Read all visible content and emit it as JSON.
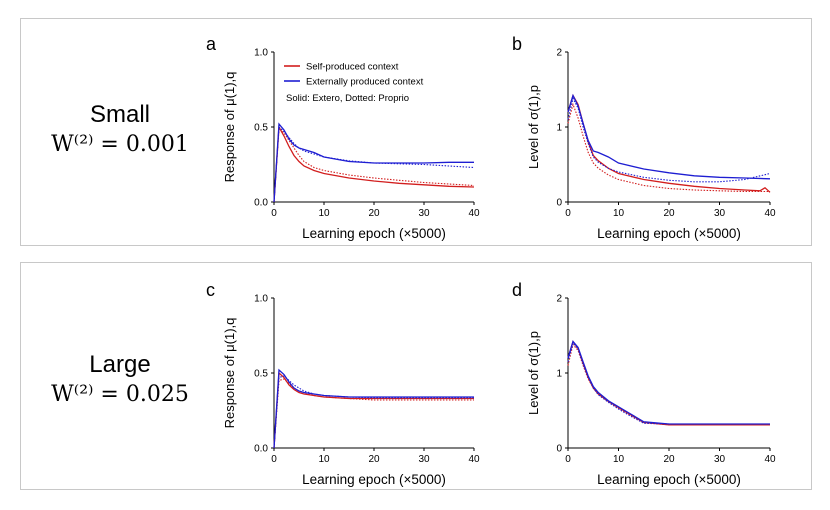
{
  "rows": [
    {
      "label": "Small",
      "formula": "W⁽²⁾ = 0.001"
    },
    {
      "label": "Large",
      "formula": "W⁽²⁾ = 0.025"
    }
  ],
  "legend": {
    "items": [
      {
        "name": "Self-produced context",
        "color": "#d21e1e"
      },
      {
        "name": "Externally produced context",
        "color": "#1e1ed2"
      }
    ],
    "note": "Solid: Extero, Dotted: Proprio"
  },
  "chart_data": [
    {
      "type": "line",
      "panel": "a",
      "xlabel": "Learning epoch (×5000)",
      "ylabel": "Response of μ(1),q",
      "xlim": [
        0,
        40
      ],
      "ylim": [
        0,
        1
      ],
      "xticks": [
        "0",
        "10",
        "20",
        "30",
        "40"
      ],
      "yticks": [
        "0.0",
        "0.5",
        "1.0"
      ],
      "series": [
        {
          "name": "Self-produced context (Extero)",
          "color": "#d21e1e",
          "style": "solid",
          "x": [
            0,
            1,
            2,
            3,
            4,
            5,
            6,
            8,
            10,
            15,
            20,
            25,
            30,
            35,
            40
          ],
          "y": [
            0.0,
            0.5,
            0.44,
            0.37,
            0.31,
            0.27,
            0.24,
            0.21,
            0.19,
            0.16,
            0.14,
            0.125,
            0.115,
            0.105,
            0.1
          ]
        },
        {
          "name": "Self-produced context (Proprio)",
          "color": "#d21e1e",
          "style": "dotted",
          "x": [
            0,
            1,
            2,
            3,
            4,
            5,
            6,
            8,
            10,
            15,
            20,
            25,
            30,
            35,
            40
          ],
          "y": [
            0.0,
            0.49,
            0.46,
            0.41,
            0.36,
            0.31,
            0.27,
            0.23,
            0.21,
            0.18,
            0.16,
            0.145,
            0.13,
            0.12,
            0.11
          ]
        },
        {
          "name": "Externally produced context (Extero)",
          "color": "#1e1ed2",
          "style": "solid",
          "x": [
            0,
            1,
            2,
            3,
            4,
            5,
            6,
            8,
            10,
            15,
            20,
            25,
            30,
            35,
            40
          ],
          "y": [
            0.0,
            0.52,
            0.48,
            0.42,
            0.38,
            0.36,
            0.35,
            0.33,
            0.3,
            0.27,
            0.26,
            0.26,
            0.26,
            0.265,
            0.265
          ]
        },
        {
          "name": "Externally produced context (Proprio)",
          "color": "#1e1ed2",
          "style": "dotted",
          "x": [
            0,
            1,
            2,
            3,
            4,
            5,
            6,
            8,
            10,
            15,
            20,
            25,
            30,
            35,
            40
          ],
          "y": [
            0.0,
            0.5,
            0.47,
            0.43,
            0.39,
            0.36,
            0.34,
            0.32,
            0.3,
            0.275,
            0.26,
            0.255,
            0.25,
            0.24,
            0.23
          ]
        }
      ]
    },
    {
      "type": "line",
      "panel": "b",
      "xlabel": "Learning epoch (×5000)",
      "ylabel": "Level of σ(1),p",
      "xlim": [
        0,
        40
      ],
      "ylim": [
        0,
        2
      ],
      "xticks": [
        "0",
        "10",
        "20",
        "30",
        "40"
      ],
      "yticks": [
        "0",
        "1",
        "2"
      ],
      "series": [
        {
          "name": "Self-produced context (Extero)",
          "color": "#d21e1e",
          "style": "solid",
          "x": [
            0,
            1,
            2,
            3,
            4,
            5,
            6,
            8,
            10,
            15,
            20,
            25,
            30,
            35,
            38,
            39,
            40
          ],
          "y": [
            1.2,
            1.42,
            1.3,
            1.05,
            0.8,
            0.62,
            0.55,
            0.45,
            0.38,
            0.3,
            0.25,
            0.21,
            0.18,
            0.16,
            0.15,
            0.19,
            0.13
          ]
        },
        {
          "name": "Self-produced context (Proprio)",
          "color": "#d21e1e",
          "style": "dotted",
          "x": [
            0,
            1,
            2,
            3,
            4,
            5,
            6,
            8,
            10,
            15,
            20,
            25,
            30,
            35,
            40
          ],
          "y": [
            1.05,
            1.3,
            1.12,
            0.88,
            0.66,
            0.52,
            0.45,
            0.36,
            0.3,
            0.22,
            0.18,
            0.16,
            0.15,
            0.14,
            0.14
          ]
        },
        {
          "name": "Externally produced context (Extero)",
          "color": "#1e1ed2",
          "style": "solid",
          "x": [
            0,
            1,
            2,
            3,
            4,
            5,
            6,
            8,
            10,
            15,
            20,
            25,
            30,
            35,
            40
          ],
          "y": [
            1.2,
            1.42,
            1.28,
            1.05,
            0.82,
            0.68,
            0.66,
            0.6,
            0.52,
            0.44,
            0.39,
            0.35,
            0.33,
            0.32,
            0.31
          ]
        },
        {
          "name": "Externally produced context (Proprio)",
          "color": "#1e1ed2",
          "style": "dotted",
          "x": [
            0,
            1,
            2,
            3,
            4,
            5,
            6,
            8,
            10,
            15,
            20,
            25,
            30,
            35,
            40
          ],
          "y": [
            1.1,
            1.38,
            1.25,
            1.0,
            0.78,
            0.6,
            0.53,
            0.45,
            0.4,
            0.33,
            0.29,
            0.27,
            0.27,
            0.3,
            0.38
          ]
        }
      ]
    },
    {
      "type": "line",
      "panel": "c",
      "xlabel": "Learning epoch (×5000)",
      "ylabel": "Response of μ(1),q",
      "xlim": [
        0,
        40
      ],
      "ylim": [
        0,
        1
      ],
      "xticks": [
        "0",
        "10",
        "20",
        "30",
        "40"
      ],
      "yticks": [
        "0.0",
        "0.5",
        "1.0"
      ],
      "series": [
        {
          "name": "Self-produced context (Extero)",
          "color": "#d21e1e",
          "style": "solid",
          "x": [
            0,
            1,
            2,
            3,
            4,
            5,
            6,
            8,
            10,
            15,
            20,
            25,
            30,
            35,
            40
          ],
          "y": [
            0.0,
            0.5,
            0.47,
            0.42,
            0.39,
            0.37,
            0.36,
            0.35,
            0.34,
            0.33,
            0.33,
            0.33,
            0.33,
            0.33,
            0.33
          ]
        },
        {
          "name": "Self-produced context (Proprio)",
          "color": "#d21e1e",
          "style": "dotted",
          "x": [
            0,
            1,
            2,
            3,
            4,
            5,
            6,
            8,
            10,
            15,
            20,
            25,
            30,
            35,
            40
          ],
          "y": [
            0.0,
            0.45,
            0.46,
            0.43,
            0.4,
            0.38,
            0.37,
            0.35,
            0.34,
            0.33,
            0.32,
            0.32,
            0.32,
            0.32,
            0.32
          ]
        },
        {
          "name": "Externally produced context (Extero)",
          "color": "#1e1ed2",
          "style": "solid",
          "x": [
            0,
            1,
            2,
            3,
            4,
            5,
            6,
            8,
            10,
            15,
            20,
            25,
            30,
            35,
            40
          ],
          "y": [
            0.0,
            0.52,
            0.49,
            0.44,
            0.4,
            0.38,
            0.37,
            0.36,
            0.35,
            0.34,
            0.34,
            0.34,
            0.34,
            0.34,
            0.34
          ]
        },
        {
          "name": "Externally produced context (Proprio)",
          "color": "#1e1ed2",
          "style": "dotted",
          "x": [
            0,
            1,
            2,
            3,
            4,
            5,
            6,
            8,
            10,
            15,
            20,
            25,
            30,
            35,
            40
          ],
          "y": [
            0.0,
            0.47,
            0.48,
            0.45,
            0.42,
            0.4,
            0.38,
            0.36,
            0.35,
            0.34,
            0.335,
            0.335,
            0.335,
            0.335,
            0.335
          ]
        }
      ]
    },
    {
      "type": "line",
      "panel": "d",
      "xlabel": "Learning epoch (×5000)",
      "ylabel": "Level of σ(1),p",
      "xlim": [
        0,
        40
      ],
      "ylim": [
        0,
        2
      ],
      "xticks": [
        "0",
        "10",
        "20",
        "30",
        "40"
      ],
      "yticks": [
        "0",
        "1",
        "2"
      ],
      "series": [
        {
          "name": "Self-produced context (Extero)",
          "color": "#d21e1e",
          "style": "solid",
          "x": [
            0,
            1,
            2,
            3,
            4,
            5,
            6,
            8,
            10,
            12,
            15,
            20,
            25,
            30,
            35,
            40
          ],
          "y": [
            1.2,
            1.42,
            1.33,
            1.13,
            0.94,
            0.8,
            0.72,
            0.62,
            0.54,
            0.46,
            0.34,
            0.31,
            0.31,
            0.31,
            0.31,
            0.31
          ]
        },
        {
          "name": "Self-produced context (Proprio)",
          "color": "#d21e1e",
          "style": "dotted",
          "x": [
            0,
            1,
            2,
            3,
            4,
            5,
            6,
            8,
            10,
            12,
            15,
            20,
            25,
            30,
            35,
            40
          ],
          "y": [
            1.1,
            1.38,
            1.3,
            1.1,
            0.92,
            0.8,
            0.72,
            0.62,
            0.53,
            0.45,
            0.34,
            0.31,
            0.31,
            0.31,
            0.31,
            0.31
          ]
        },
        {
          "name": "Externally produced context (Extero)",
          "color": "#1e1ed2",
          "style": "solid",
          "x": [
            0,
            1,
            2,
            3,
            4,
            5,
            6,
            8,
            10,
            12,
            15,
            20,
            25,
            30,
            35,
            40
          ],
          "y": [
            1.2,
            1.42,
            1.34,
            1.15,
            0.96,
            0.82,
            0.74,
            0.63,
            0.55,
            0.47,
            0.35,
            0.32,
            0.32,
            0.32,
            0.32,
            0.32
          ]
        },
        {
          "name": "Externally produced context (Proprio)",
          "color": "#1e1ed2",
          "style": "dotted",
          "x": [
            0,
            1,
            2,
            3,
            4,
            5,
            6,
            8,
            10,
            12,
            15,
            20,
            25,
            30,
            35,
            40
          ],
          "y": [
            1.15,
            1.4,
            1.32,
            1.12,
            0.94,
            0.8,
            0.71,
            0.61,
            0.52,
            0.44,
            0.33,
            0.32,
            0.32,
            0.32,
            0.32,
            0.32
          ]
        }
      ]
    }
  ]
}
